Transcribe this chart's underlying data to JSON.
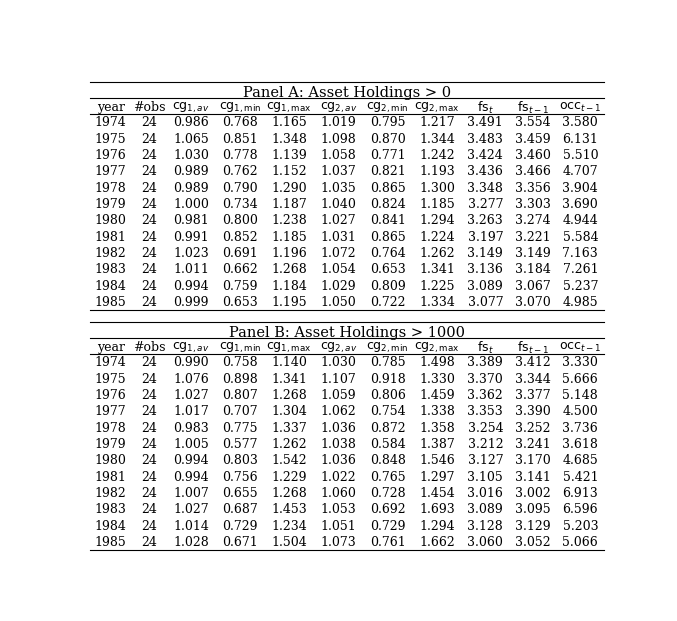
{
  "title_a": "Panel A: Asset Holdings > 0",
  "title_b": "Panel B: Asset Holdings > 1000",
  "panel_a": [
    [
      1974,
      24,
      0.986,
      0.768,
      1.165,
      1.019,
      0.795,
      1.217,
      3.491,
      3.554,
      3.58
    ],
    [
      1975,
      24,
      1.065,
      0.851,
      1.348,
      1.098,
      0.87,
      1.344,
      3.483,
      3.459,
      6.131
    ],
    [
      1976,
      24,
      1.03,
      0.778,
      1.139,
      1.058,
      0.771,
      1.242,
      3.424,
      3.46,
      5.51
    ],
    [
      1977,
      24,
      0.989,
      0.762,
      1.152,
      1.037,
      0.821,
      1.193,
      3.436,
      3.466,
      4.707
    ],
    [
      1978,
      24,
      0.989,
      0.79,
      1.29,
      1.035,
      0.865,
      1.3,
      3.348,
      3.356,
      3.904
    ],
    [
      1979,
      24,
      1.0,
      0.734,
      1.187,
      1.04,
      0.824,
      1.185,
      3.277,
      3.303,
      3.69
    ],
    [
      1980,
      24,
      0.981,
      0.8,
      1.238,
      1.027,
      0.841,
      1.294,
      3.263,
      3.274,
      4.944
    ],
    [
      1981,
      24,
      0.991,
      0.852,
      1.185,
      1.031,
      0.865,
      1.224,
      3.197,
      3.221,
      5.584
    ],
    [
      1982,
      24,
      1.023,
      0.691,
      1.196,
      1.072,
      0.764,
      1.262,
      3.149,
      3.149,
      7.163
    ],
    [
      1983,
      24,
      1.011,
      0.662,
      1.268,
      1.054,
      0.653,
      1.341,
      3.136,
      3.184,
      7.261
    ],
    [
      1984,
      24,
      0.994,
      0.759,
      1.184,
      1.029,
      0.809,
      1.225,
      3.089,
      3.067,
      5.237
    ],
    [
      1985,
      24,
      0.999,
      0.653,
      1.195,
      1.05,
      0.722,
      1.334,
      3.077,
      3.07,
      4.985
    ]
  ],
  "panel_b": [
    [
      1974,
      24,
      0.99,
      0.758,
      1.14,
      1.03,
      0.785,
      1.498,
      3.389,
      3.412,
      3.33
    ],
    [
      1975,
      24,
      1.076,
      0.898,
      1.341,
      1.107,
      0.918,
      1.33,
      3.37,
      3.344,
      5.666
    ],
    [
      1976,
      24,
      1.027,
      0.807,
      1.268,
      1.059,
      0.806,
      1.459,
      3.362,
      3.377,
      5.148
    ],
    [
      1977,
      24,
      1.017,
      0.707,
      1.304,
      1.062,
      0.754,
      1.338,
      3.353,
      3.39,
      4.5
    ],
    [
      1978,
      24,
      0.983,
      0.775,
      1.337,
      1.036,
      0.872,
      1.358,
      3.254,
      3.252,
      3.736
    ],
    [
      1979,
      24,
      1.005,
      0.577,
      1.262,
      1.038,
      0.584,
      1.387,
      3.212,
      3.241,
      3.618
    ],
    [
      1980,
      24,
      0.994,
      0.803,
      1.542,
      1.036,
      0.848,
      1.546,
      3.127,
      3.17,
      4.685
    ],
    [
      1981,
      24,
      0.994,
      0.756,
      1.229,
      1.022,
      0.765,
      1.297,
      3.105,
      3.141,
      5.421
    ],
    [
      1982,
      24,
      1.007,
      0.655,
      1.268,
      1.06,
      0.728,
      1.454,
      3.016,
      3.002,
      6.913
    ],
    [
      1983,
      24,
      1.027,
      0.687,
      1.453,
      1.053,
      0.692,
      1.693,
      3.089,
      3.095,
      6.596
    ],
    [
      1984,
      24,
      1.014,
      0.729,
      1.234,
      1.051,
      0.729,
      1.294,
      3.128,
      3.129,
      5.203
    ],
    [
      1985,
      24,
      1.028,
      0.671,
      1.504,
      1.073,
      0.761,
      1.662,
      3.06,
      3.052,
      5.066
    ]
  ],
  "bg_color": "white",
  "text_color": "black",
  "font_size": 9.0,
  "header_font_size": 9.0,
  "panel_title_font_size": 10.5
}
